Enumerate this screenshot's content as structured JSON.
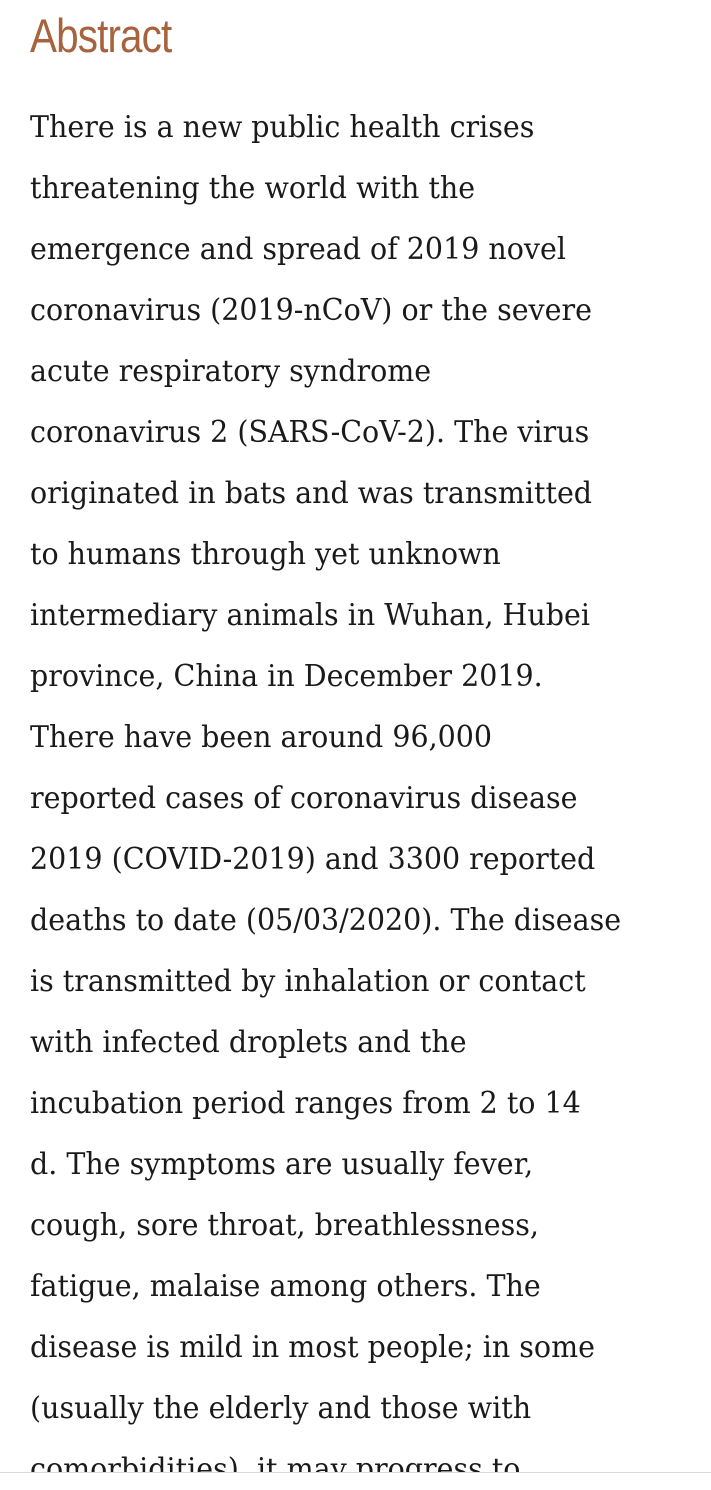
{
  "section": {
    "heading": "Abstract",
    "lines": [
      "There is a new public health crises",
      "threatening the world with the",
      "emergence and spread of 2019 novel",
      "coronavirus (2019-nCoV) or the severe",
      "acute respiratory syndrome",
      "coronavirus 2 (SARS-CoV-2). The virus",
      "originated in bats and was transmitted",
      "to humans through yet unknown",
      "intermediary animals in Wuhan, Hubei",
      "province, China in December 2019.",
      "There have been around 96,000",
      "reported cases of coronavirus disease",
      "2019 (COVID-2019) and 3300 reported",
      "deaths to date (05/03/2020). The disease",
      "is transmitted by inhalation or contact",
      "with infected droplets and the",
      "incubation period ranges from 2 to 14",
      "d. The symptoms are usually fever,",
      "cough, sore throat, breathlessness,",
      "fatigue, malaise among others. The",
      "disease is mild in most people; in some",
      "(usually the elderly and those with",
      "comorbidities), it may progress to"
    ]
  },
  "colors": {
    "heading": "#a7633d",
    "text": "#1a1a1a",
    "background": "#ffffff"
  }
}
